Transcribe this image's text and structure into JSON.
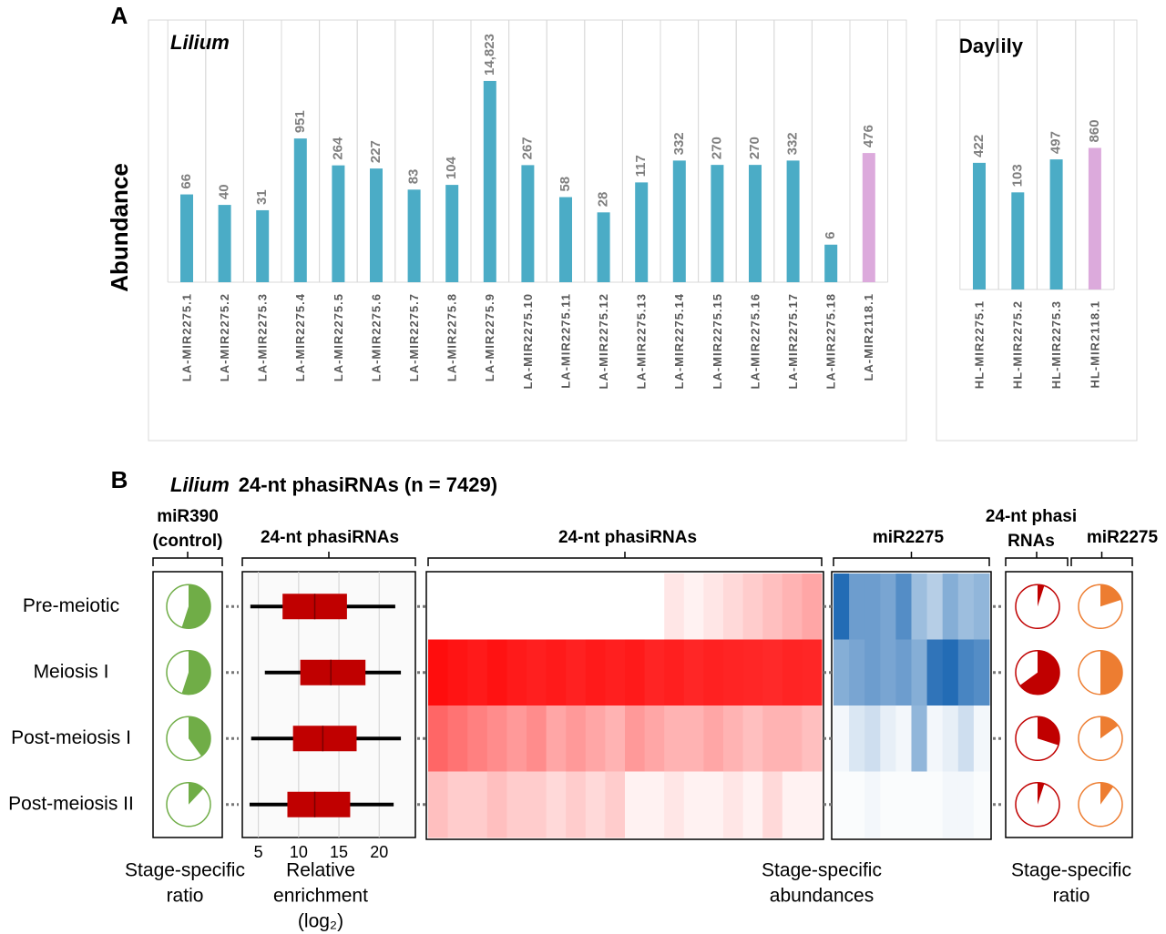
{
  "panel_labels": [
    "A",
    "B"
  ],
  "panel_b": {
    "title_italic": "Lilium",
    "title": "24-nt phasiRNAs (n = 7429)"
  },
  "chart_data": [
    {
      "type": "bar",
      "title": "Lilium",
      "ylabel": "Abundance",
      "log_scale": true,
      "ylim": [
        1,
        100000
      ],
      "categories": [
        "LA-MIR2275.1",
        "LA-MIR2275.2",
        "LA-MIR2275.3",
        "LA-MIR2275.4",
        "LA-MIR2275.5",
        "LA-MIR2275.6",
        "LA-MIR2275.7",
        "LA-MIR2275.8",
        "LA-MIR2275.9",
        "LA-MIR2275.10",
        "LA-MIR2275.11",
        "LA-MIR2275.12",
        "LA-MIR2275.13",
        "LA-MIR2275.14",
        "LA-MIR2275.15",
        "LA-MIR2275.16",
        "LA-MIR2275.17",
        "LA-MIR2275.18",
        "LA-MIR2118.1"
      ],
      "values": [
        66,
        40,
        31,
        951,
        264,
        227,
        83,
        104,
        14823,
        267,
        58,
        28,
        117,
        332,
        270,
        270,
        332,
        6,
        476
      ],
      "value_labels": [
        "66",
        "40",
        "31",
        "951",
        "264",
        "227",
        "83",
        "104",
        "14,823",
        "267",
        "58",
        "28",
        "117",
        "332",
        "270",
        "270",
        "332",
        "6",
        "476"
      ],
      "colors": [
        "#4bacc6",
        "#4bacc6",
        "#4bacc6",
        "#4bacc6",
        "#4bacc6",
        "#4bacc6",
        "#4bacc6",
        "#4bacc6",
        "#4bacc6",
        "#4bacc6",
        "#4bacc6",
        "#4bacc6",
        "#4bacc6",
        "#4bacc6",
        "#4bacc6",
        "#4bacc6",
        "#4bacc6",
        "#4bacc6",
        "#dcaadc"
      ]
    },
    {
      "type": "bar",
      "title": "Daylily",
      "log_scale": true,
      "ylim": [
        1,
        100000
      ],
      "categories": [
        "HL-MIR2275.1",
        "HL-MIR2275.2",
        "HL-MIR2275.3",
        "HL-MIR2118.1"
      ],
      "values": [
        422,
        103,
        497,
        860
      ],
      "colors": [
        "#4bacc6",
        "#4bacc6",
        "#4bacc6",
        "#dcaadc"
      ]
    },
    {
      "type": "pie",
      "header": [
        "miR390",
        "(control)"
      ],
      "footer": [
        "Stage-specific",
        "ratio"
      ],
      "color": "#70ad47",
      "values": [
        55,
        55,
        40,
        12
      ]
    },
    {
      "type": "box",
      "header": [
        "24-nt phasiRNAs"
      ],
      "footer": [
        "Relative",
        "enrichment",
        "(log₂)"
      ],
      "categories": [
        "Pre-meiotic",
        "Meiosis I",
        "Post-meiosis I",
        "Post-meiosis II"
      ],
      "xlim": [
        3,
        24.5
      ],
      "xticks": [
        5,
        10,
        15,
        20
      ],
      "color": "#c00000",
      "min": [
        4,
        5.8,
        4.1,
        3.9
      ],
      "q1": [
        8,
        10.2,
        9.3,
        8.6
      ],
      "median": [
        12,
        14,
        13,
        12
      ],
      "q3": [
        16,
        18.3,
        17.2,
        16.4
      ],
      "max": [
        22,
        22.7,
        22.7,
        21.8
      ]
    },
    {
      "type": "heatmap",
      "header": [
        "24-nt phasiRNAs"
      ],
      "color": "#ff0000",
      "zlim": [
        0,
        1
      ],
      "values": [
        [
          0,
          0,
          0,
          0,
          0,
          0,
          0,
          0,
          0,
          0,
          0,
          0,
          0.1,
          0.05,
          0.1,
          0.15,
          0.2,
          0.25,
          0.3,
          0.35
        ],
        [
          0.95,
          0.92,
          0.9,
          0.93,
          0.9,
          0.88,
          0.9,
          0.87,
          0.9,
          0.88,
          0.9,
          0.86,
          0.88,
          0.85,
          0.87,
          0.86,
          0.85,
          0.84,
          0.86,
          0.85
        ],
        [
          0.6,
          0.55,
          0.5,
          0.45,
          0.4,
          0.45,
          0.35,
          0.4,
          0.35,
          0.3,
          0.4,
          0.35,
          0.3,
          0.3,
          0.35,
          0.3,
          0.25,
          0.3,
          0.3,
          0.25
        ],
        [
          0.25,
          0.2,
          0.2,
          0.25,
          0.2,
          0.2,
          0.15,
          0.2,
          0.15,
          0.2,
          0.05,
          0.05,
          0.1,
          0.05,
          0.05,
          0.1,
          0.05,
          0.15,
          0.05,
          0.05
        ]
      ]
    },
    {
      "type": "heatmap",
      "header": [
        "miR2275"
      ],
      "footer": [
        "Stage-specific",
        "abundances"
      ],
      "color": "#0b5cad",
      "zlim": [
        0,
        1
      ],
      "values": [
        [
          0.9,
          0.6,
          0.6,
          0.55,
          0.7,
          0.4,
          0.3,
          0.5,
          0.4,
          0.45
        ],
        [
          0.5,
          0.55,
          0.6,
          0.55,
          0.6,
          0.5,
          0.85,
          0.9,
          0.75,
          0.7
        ],
        [
          0.05,
          0.15,
          0.2,
          0.1,
          0.05,
          0.45,
          0.05,
          0.1,
          0.2,
          0.05
        ],
        [
          0.02,
          0.02,
          0.05,
          0.02,
          0.02,
          0.02,
          0.02,
          0.05,
          0.05,
          0.02
        ]
      ]
    },
    {
      "type": "pie",
      "header": [
        "24-nt phasi",
        "RNAs"
      ],
      "footer": [
        "Stage-specific",
        "ratio"
      ],
      "color": "#c00000",
      "values": [
        5,
        65,
        30,
        5
      ]
    },
    {
      "type": "pie",
      "header": [
        "miR2275"
      ],
      "color": "#ed7d31",
      "values": [
        20,
        50,
        15,
        10
      ]
    }
  ]
}
